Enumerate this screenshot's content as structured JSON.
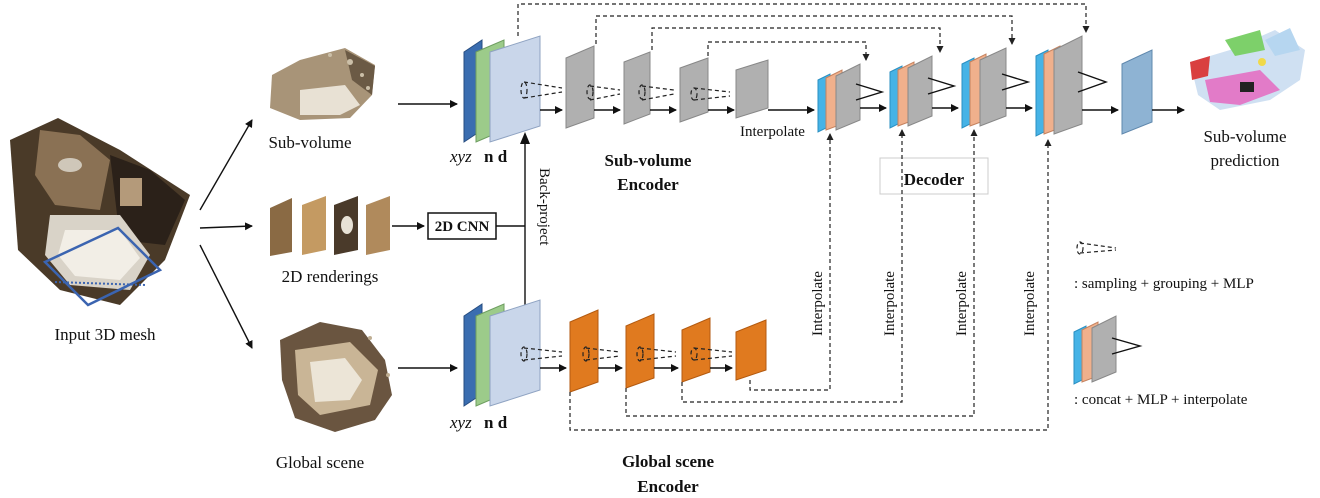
{
  "labels": {
    "input_mesh": "Input 3D mesh",
    "sub_volume": "Sub-volume",
    "renderings": "2D renderings",
    "global_scene": "Global scene",
    "cnn": "2D CNN",
    "back_project": "Back-project",
    "xyz": "xyz",
    "nd": "n d",
    "sub_encoder_line1": "Sub-volume",
    "sub_encoder_line2": "Encoder",
    "global_encoder_line1": "Global scene",
    "global_encoder_line2": "Encoder",
    "decoder": "Decoder",
    "interpolate": "Interpolate",
    "prediction_line1": "Sub-volume",
    "prediction_line2": "prediction",
    "legend_sampling": ": sampling +  grouping + MLP",
    "legend_concat": ": concat + MLP + interpolate"
  },
  "colors": {
    "feat_blue": "#3a6db0",
    "feat_green": "#9ccb8a",
    "feat_light": "#c9d6ea",
    "encoder_gray": "#b0b0b0",
    "encoder_orange": "#e07a1f",
    "decoder_blue": "#46b3e6",
    "decoder_peach": "#f0b08c",
    "output_blue": "#8eb3d3"
  },
  "icons": {
    "mesh": "3d-mesh-thumbnail",
    "subvolume": "point-cloud-thumbnail",
    "renderings": "rendering-thumbnails",
    "global": "global-scene-thumbnail",
    "prediction": "segmented-point-cloud-thumbnail",
    "cone": "dotted-cone-icon",
    "stack": "decoder-stack-icon"
  }
}
